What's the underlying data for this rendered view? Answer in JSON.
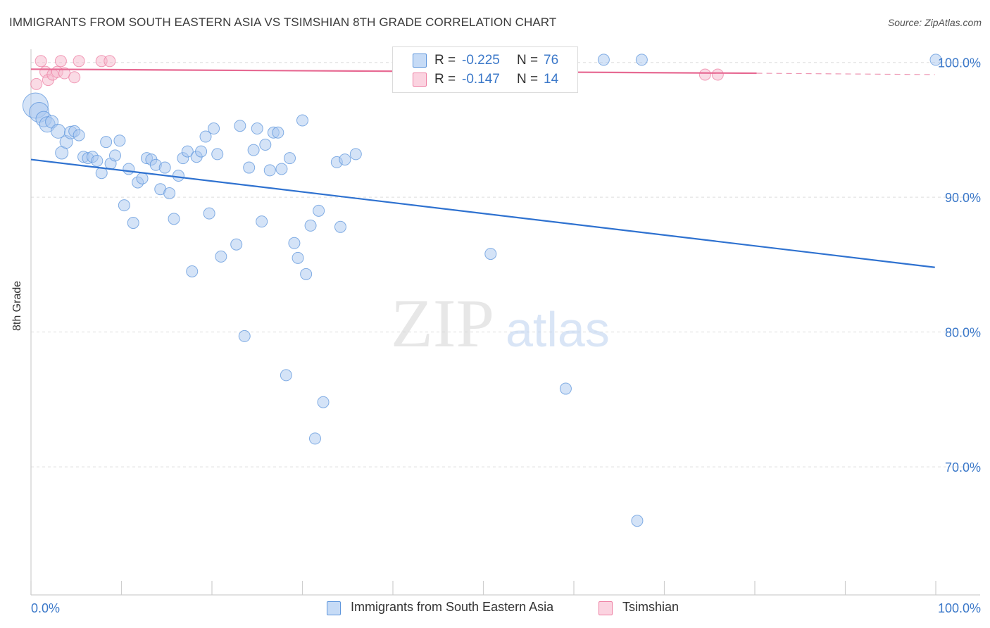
{
  "header": {
    "title": "IMMIGRANTS FROM SOUTH EASTERN ASIA VS TSIMSHIAN 8TH GRADE CORRELATION CHART",
    "source": "Source: ZipAtlas.com"
  },
  "watermark": {
    "zip": "ZIP",
    "atlas": "atlas"
  },
  "legend": {
    "rows": [
      {
        "r_label": "R =",
        "r_value": "-0.225",
        "n_label": "N =",
        "n_value": "76",
        "color": "#aac8f0"
      },
      {
        "r_label": "R =",
        "r_value": "-0.147",
        "n_label": "N =",
        "n_value": "14",
        "color": "#f6b8cc"
      }
    ]
  },
  "bottom_legend": {
    "series1": "Immigrants from South Eastern Asia",
    "series2": "Tsimshian"
  },
  "chart_data": {
    "type": "scatter",
    "title": "IMMIGRANTS FROM SOUTH EASTERN ASIA VS TSIMSHIAN 8TH GRADE CORRELATION CHART",
    "xlabel": "",
    "ylabel": "8th Grade",
    "xlim": [
      0,
      100
    ],
    "ylim": [
      60.5,
      101.5
    ],
    "x_tick_labels": [
      "0.0%",
      "100.0%"
    ],
    "y_ticks": [
      70,
      80,
      90,
      100
    ],
    "y_tick_labels": [
      "70.0%",
      "80.0%",
      "90.0%",
      "100.0%"
    ],
    "grid": true,
    "colors": {
      "series1": "#5d95dc",
      "series2": "#ee7fa3",
      "trend1": "#2f72d0",
      "trend2": "#e76a93",
      "tick_text": "#3b78c9"
    },
    "series": [
      {
        "name": "Immigrants from South Eastern Asia",
        "trend": {
          "x": [
            0,
            99.9
          ],
          "y": [
            92.8,
            84.8
          ]
        },
        "points": [
          [
            0.5,
            96.8,
            18
          ],
          [
            0.9,
            96.3,
            14
          ],
          [
            1.4,
            95.8,
            11
          ],
          [
            1.8,
            95.4,
            11
          ],
          [
            2.3,
            95.6,
            9
          ],
          [
            3.0,
            94.9,
            10
          ],
          [
            3.4,
            93.3,
            9
          ],
          [
            3.9,
            94.1,
            9
          ],
          [
            4.4,
            94.8,
            9
          ],
          [
            4.8,
            94.9,
            8
          ],
          [
            5.3,
            94.6,
            8
          ],
          [
            5.8,
            93.0,
            8
          ],
          [
            6.3,
            92.9,
            8
          ],
          [
            6.8,
            93.0,
            8
          ],
          [
            7.3,
            92.7,
            8
          ],
          [
            7.8,
            91.8,
            8
          ],
          [
            8.3,
            94.1,
            8
          ],
          [
            8.8,
            92.5,
            8
          ],
          [
            9.3,
            93.1,
            8
          ],
          [
            9.8,
            94.2,
            8
          ],
          [
            10.3,
            89.4,
            8
          ],
          [
            10.8,
            92.1,
            8
          ],
          [
            11.3,
            88.1,
            8
          ],
          [
            11.8,
            91.1,
            8
          ],
          [
            12.3,
            91.4,
            8
          ],
          [
            12.8,
            92.9,
            8
          ],
          [
            13.3,
            92.8,
            8
          ],
          [
            13.8,
            92.4,
            8
          ],
          [
            14.3,
            90.6,
            8
          ],
          [
            14.8,
            92.2,
            8
          ],
          [
            15.3,
            90.3,
            8
          ],
          [
            15.8,
            88.4,
            8
          ],
          [
            16.3,
            91.6,
            8
          ],
          [
            16.8,
            92.9,
            8
          ],
          [
            17.3,
            93.4,
            8
          ],
          [
            17.8,
            84.5,
            8
          ],
          [
            18.3,
            93.0,
            8
          ],
          [
            18.8,
            93.4,
            8
          ],
          [
            19.3,
            94.5,
            8
          ],
          [
            19.7,
            88.8,
            8
          ],
          [
            20.2,
            95.1,
            8
          ],
          [
            20.6,
            93.2,
            8
          ],
          [
            21.0,
            85.6,
            8
          ],
          [
            22.7,
            86.5,
            8
          ],
          [
            23.1,
            95.3,
            8
          ],
          [
            23.6,
            79.7,
            8
          ],
          [
            24.1,
            92.2,
            8
          ],
          [
            24.6,
            93.5,
            8
          ],
          [
            25.0,
            95.1,
            8
          ],
          [
            25.5,
            88.2,
            8
          ],
          [
            25.9,
            93.9,
            8
          ],
          [
            26.4,
            92.0,
            8
          ],
          [
            26.8,
            94.8,
            8
          ],
          [
            27.3,
            94.8,
            8
          ],
          [
            27.7,
            92.1,
            8
          ],
          [
            28.2,
            76.8,
            8
          ],
          [
            28.6,
            92.9,
            8
          ],
          [
            29.1,
            86.6,
            8
          ],
          [
            29.5,
            85.5,
            8
          ],
          [
            30.0,
            95.7,
            8
          ],
          [
            30.4,
            84.3,
            8
          ],
          [
            30.9,
            87.9,
            8
          ],
          [
            31.4,
            72.1,
            8
          ],
          [
            31.8,
            89.0,
            8
          ],
          [
            32.3,
            74.8,
            8
          ],
          [
            33.8,
            92.6,
            8
          ],
          [
            34.2,
            87.8,
            8
          ],
          [
            34.7,
            92.8,
            8
          ],
          [
            35.9,
            93.2,
            8
          ],
          [
            43.3,
            100.2,
            8
          ],
          [
            50.8,
            85.8,
            8
          ],
          [
            59.1,
            75.8,
            8
          ],
          [
            63.3,
            100.2,
            8
          ],
          [
            67.0,
            66.0,
            8
          ],
          [
            67.5,
            100.2,
            8
          ],
          [
            100.0,
            100.2,
            8
          ]
        ]
      },
      {
        "name": "Tsimshian",
        "trend": {
          "x": [
            0,
            80.2,
            99.9
          ],
          "y": [
            99.5,
            99.2,
            99.1
          ]
        },
        "points": [
          [
            0.6,
            98.4,
            8
          ],
          [
            1.1,
            100.1,
            8
          ],
          [
            1.6,
            99.3,
            8
          ],
          [
            1.9,
            98.7,
            8
          ],
          [
            2.4,
            99.1,
            8
          ],
          [
            2.9,
            99.3,
            8
          ],
          [
            3.3,
            100.1,
            8
          ],
          [
            3.7,
            99.2,
            8
          ],
          [
            4.8,
            98.9,
            8
          ],
          [
            5.3,
            100.1,
            8
          ],
          [
            7.8,
            100.1,
            8
          ],
          [
            8.7,
            100.1,
            8
          ],
          [
            74.5,
            99.1,
            8
          ],
          [
            75.9,
            99.1,
            8
          ]
        ]
      }
    ]
  }
}
